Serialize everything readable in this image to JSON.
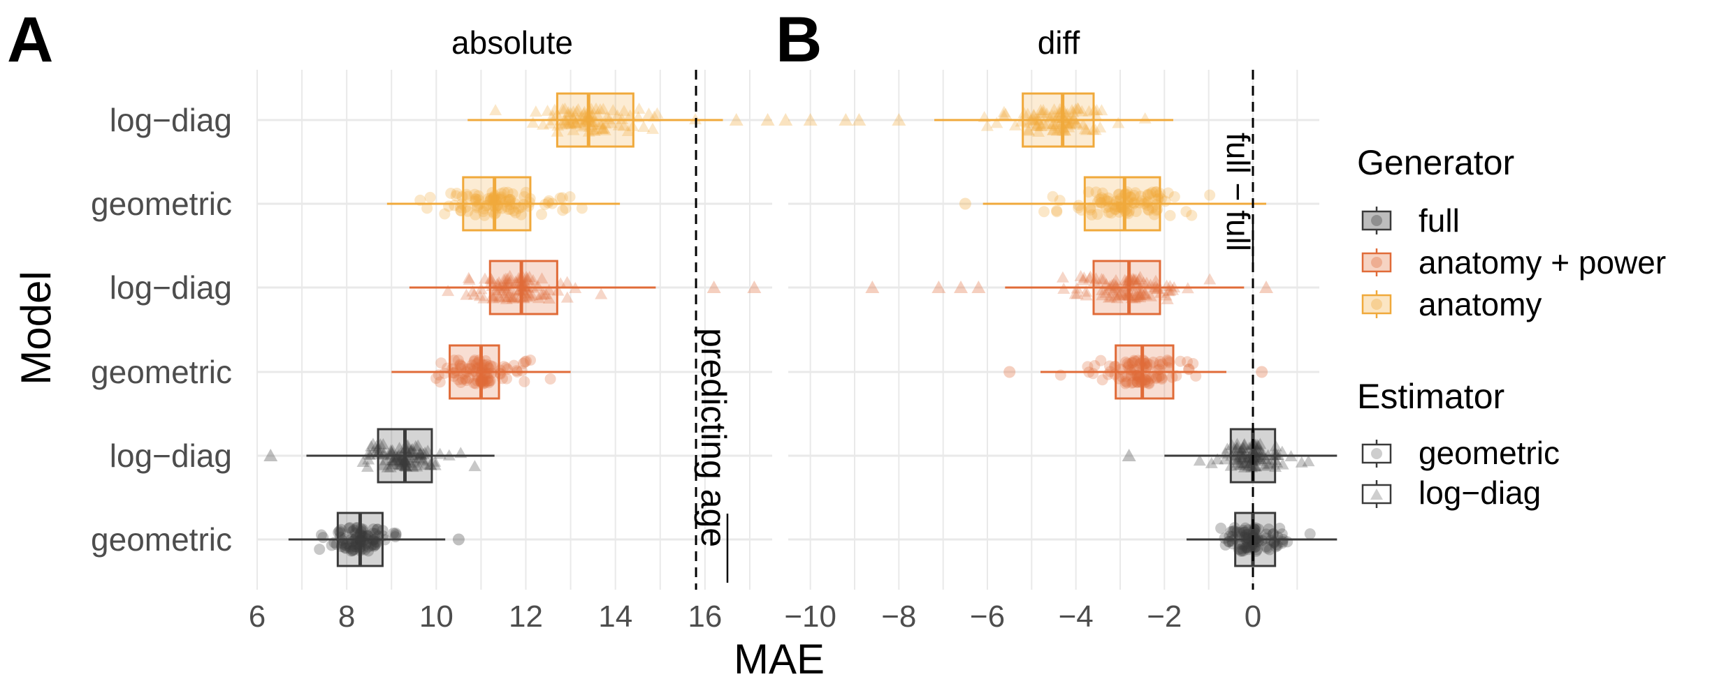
{
  "panels": {
    "a": {
      "letter": "A",
      "title": "absolute",
      "reference_label": "predicting age"
    },
    "b": {
      "letter": "B",
      "title": "diff",
      "reference_label": "full − full"
    }
  },
  "axes": {
    "ylabel": "Model",
    "xlabel": "MAE",
    "y_ticklabels": [
      "log−diag",
      "geometric",
      "log−diag",
      "geometric",
      "log−diag",
      "geometric"
    ],
    "a_xticks": [
      "6",
      "8",
      "10",
      "12",
      "14",
      "16"
    ],
    "b_xticks": [
      "−10",
      "−8",
      "−6",
      "−4",
      "−2",
      "0"
    ]
  },
  "legend": {
    "generator_title": "Generator",
    "generator_items": [
      "full",
      "anatomy + power",
      "anatomy"
    ],
    "estimator_title": "Estimator",
    "estimator_items": [
      "geometric",
      "log−diag"
    ]
  },
  "colors": {
    "full": "#3a3a3a",
    "anatomy_power": "#e06b38",
    "anatomy": "#f0a93b",
    "grid": "#e9e9e9"
  },
  "chart_data": [
    {
      "type": "box",
      "panel": "A",
      "title": "absolute",
      "xlabel": "MAE",
      "ylabel": "Model",
      "xlim": [
        6,
        17.5
      ],
      "reference_line": 15.8,
      "grid": true,
      "categories": [
        "log−diag",
        "geometric",
        "log−diag",
        "geometric",
        "log−diag",
        "geometric"
      ],
      "series": [
        {
          "generator": "anatomy",
          "estimator": "log−diag",
          "min": 10.7,
          "q1": 12.7,
          "median": 13.4,
          "q3": 14.4,
          "max": 16.4,
          "outliers": [
            16.7,
            17.4,
            17.8
          ]
        },
        {
          "generator": "anatomy",
          "estimator": "geometric",
          "min": 8.9,
          "q1": 10.6,
          "median": 11.3,
          "q3": 12.1,
          "max": 14.1,
          "outliers": []
        },
        {
          "generator": "anatomy + power",
          "estimator": "log−diag",
          "min": 9.4,
          "q1": 11.2,
          "median": 11.9,
          "q3": 12.7,
          "max": 14.9,
          "outliers": [
            16.2,
            17.1
          ]
        },
        {
          "generator": "anatomy + power",
          "estimator": "geometric",
          "min": 9.0,
          "q1": 10.3,
          "median": 11.0,
          "q3": 11.4,
          "max": 13.0,
          "outliers": []
        },
        {
          "generator": "full",
          "estimator": "log−diag",
          "min": 7.1,
          "q1": 8.7,
          "median": 9.3,
          "q3": 9.9,
          "max": 11.3,
          "outliers": [
            6.3
          ]
        },
        {
          "generator": "full",
          "estimator": "geometric",
          "min": 6.7,
          "q1": 7.8,
          "median": 8.3,
          "q3": 8.8,
          "max": 10.2,
          "outliers": [
            10.5
          ]
        }
      ]
    },
    {
      "type": "box",
      "panel": "B",
      "title": "diff",
      "xlabel": "MAE",
      "xlim": [
        -10.5,
        1.5
      ],
      "reference_line": 0,
      "grid": true,
      "categories": [
        "log−diag",
        "geometric",
        "log−diag",
        "geometric",
        "log−diag",
        "geometric"
      ],
      "series": [
        {
          "generator": "anatomy",
          "estimator": "log−diag",
          "min": -7.2,
          "q1": -5.2,
          "median": -4.3,
          "q3": -3.6,
          "max": -1.8,
          "outliers": [
            -10.0,
            -9.2,
            -8.9,
            -8.0
          ]
        },
        {
          "generator": "anatomy",
          "estimator": "geometric",
          "min": -6.1,
          "q1": -3.8,
          "median": -2.9,
          "q3": -2.1,
          "max": 0.3,
          "outliers": [
            -6.5
          ]
        },
        {
          "generator": "anatomy + power",
          "estimator": "log−diag",
          "min": -5.6,
          "q1": -3.6,
          "median": -2.8,
          "q3": -2.1,
          "max": -0.2,
          "outliers": [
            -8.6,
            -7.1,
            -6.6,
            -6.2,
            0.3
          ]
        },
        {
          "generator": "anatomy + power",
          "estimator": "geometric",
          "min": -4.8,
          "q1": -3.1,
          "median": -2.5,
          "q3": -1.8,
          "max": -0.6,
          "outliers": [
            -5.5,
            0.2
          ]
        },
        {
          "generator": "full",
          "estimator": "log−diag",
          "min": -2.0,
          "q1": -0.5,
          "median": 0.0,
          "q3": 0.5,
          "max": 1.9,
          "outliers": [
            -2.8
          ]
        },
        {
          "generator": "full",
          "estimator": "geometric",
          "min": -1.5,
          "q1": -0.4,
          "median": 0.0,
          "q3": 0.5,
          "max": 1.9,
          "outliers": []
        }
      ]
    }
  ]
}
